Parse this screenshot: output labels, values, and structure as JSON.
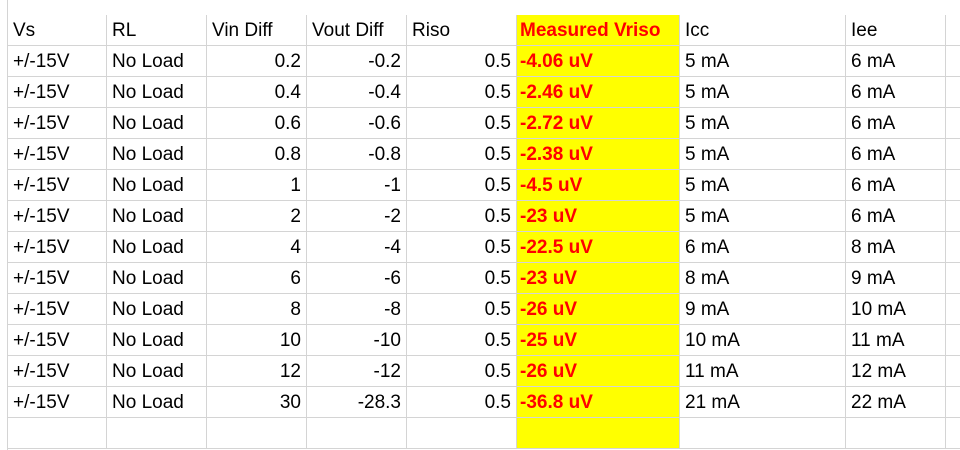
{
  "sheet": {
    "headers": [
      "Vs",
      "RL",
      "Vin Diff",
      "Vout Diff",
      "Riso",
      "Measured Vriso",
      "Icc",
      "Iee"
    ],
    "rows": [
      [
        "+/-15V",
        "No Load",
        "0.2",
        "-0.2",
        "0.5",
        "-4.06 uV",
        "5 mA",
        "6 mA"
      ],
      [
        "+/-15V",
        "No Load",
        "0.4",
        "-0.4",
        "0.5",
        "-2.46 uV",
        "5 mA",
        "6 mA"
      ],
      [
        "+/-15V",
        "No Load",
        "0.6",
        "-0.6",
        "0.5",
        "-2.72 uV",
        "5 mA",
        "6 mA"
      ],
      [
        "+/-15V",
        "No Load",
        "0.8",
        "-0.8",
        "0.5",
        "-2.38 uV",
        "5 mA",
        "6 mA"
      ],
      [
        "+/-15V",
        "No Load",
        "1",
        "-1",
        "0.5",
        "-4.5 uV",
        "5 mA",
        "6 mA"
      ],
      [
        "+/-15V",
        "No Load",
        "2",
        "-2",
        "0.5",
        "-23 uV",
        "5 mA",
        "6 mA"
      ],
      [
        "+/-15V",
        "No Load",
        "4",
        "-4",
        "0.5",
        "-22.5 uV",
        "6 mA",
        "8 mA"
      ],
      [
        "+/-15V",
        "No Load",
        "6",
        "-6",
        "0.5",
        "-23 uV",
        "8 mA",
        "9 mA"
      ],
      [
        "+/-15V",
        "No Load",
        "8",
        "-8",
        "0.5",
        "-26 uV",
        "9 mA",
        "10 mA"
      ],
      [
        "+/-15V",
        "No Load",
        "10",
        "-10",
        "0.5",
        "-25 uV",
        "10 mA",
        "11 mA"
      ],
      [
        "+/-15V",
        "No Load",
        "12",
        "-12",
        "0.5",
        "-26 uV",
        "11 mA",
        "12 mA"
      ],
      [
        "+/-15V",
        "No Load",
        "30",
        "-28.3",
        "0.5",
        "-36.8 uV",
        "21 mA",
        "22 mA"
      ]
    ],
    "highlight_column": 5,
    "highlight_fill": "#ffff00",
    "highlight_text_color": "#ff0000",
    "gridline_color": "#d4d4d4"
  }
}
